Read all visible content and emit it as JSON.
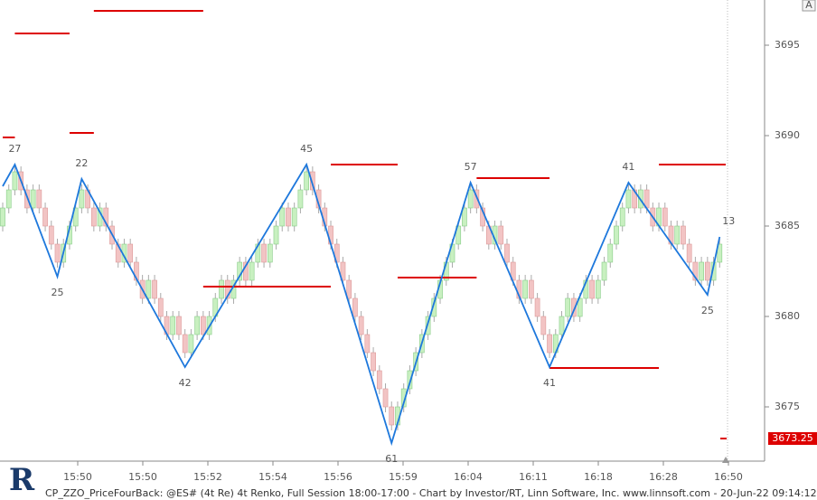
{
  "chart_data": {
    "type": "renko",
    "footer": "CP_ZZO_PriceFourBack: @ES# (4t Re) 4t Renko, Full Session 18:00-17:00 - Chart by Investor/RT, Linn Software, Inc. www.linnsoft.com - 20-Jun-22 09:14:12",
    "button": "A",
    "logo": "R",
    "ylim": [
      3672,
      3697.5
    ],
    "yticks": [
      3675,
      3680,
      3685,
      3690,
      3695
    ],
    "xlim": [
      0,
      119
    ],
    "time_labels": [
      "15:50",
      "15:50",
      "15:52",
      "15:54",
      "15:56",
      "15:59",
      "16:04",
      "16:11",
      "16:18",
      "16:28",
      "16:50"
    ],
    "bricks": {
      "up_color": "#c8f0c0",
      "down_color": "#f2c4c4",
      "values": [
        3686,
        3687,
        3688,
        3687,
        3686,
        3687,
        3686,
        3685,
        3684,
        3683,
        3684,
        3685,
        3686,
        3687,
        3686,
        3685,
        3686,
        3685,
        3684,
        3683,
        3684,
        3683,
        3682,
        3681,
        3682,
        3681,
        3680,
        3679,
        3680,
        3679,
        3678,
        3679,
        3680,
        3679,
        3680,
        3681,
        3682,
        3681,
        3682,
        3683,
        3682,
        3683,
        3684,
        3683,
        3684,
        3685,
        3686,
        3685,
        3686,
        3687,
        3688,
        3687,
        3686,
        3685,
        3684,
        3683,
        3682,
        3681,
        3680,
        3679,
        3678,
        3677,
        3676,
        3675,
        3674,
        3675,
        3676,
        3677,
        3678,
        3679,
        3680,
        3681,
        3682,
        3683,
        3684,
        3685,
        3686,
        3687,
        3686,
        3685,
        3684,
        3685,
        3684,
        3683,
        3682,
        3681,
        3682,
        3681,
        3680,
        3679,
        3678,
        3679,
        3680,
        3681,
        3680,
        3681,
        3682,
        3681,
        3682,
        3683,
        3684,
        3685,
        3686,
        3687,
        3686,
        3687,
        3686,
        3685,
        3686,
        3685,
        3684,
        3685,
        3684,
        3683,
        3682,
        3683,
        3682,
        3683,
        3684
      ]
    },
    "zigzag": {
      "color": "#1e78dc",
      "x": [
        0,
        2,
        9,
        13,
        30,
        50,
        64,
        77,
        90,
        103,
        116,
        118
      ],
      "values": [
        3687.2,
        3688.4,
        3682.2,
        3687.6,
        3677.2,
        3688.4,
        3673,
        3687.4,
        3677.2,
        3687.4,
        3681.2,
        3684.4
      ],
      "labels": [
        null,
        "27",
        "25",
        "22",
        "42",
        "45",
        "61",
        "57",
        "41",
        "41",
        "25",
        "13"
      ]
    },
    "levels": {
      "color": "#dd0000",
      "from": [
        0,
        2,
        15,
        11,
        33,
        54,
        65,
        78,
        90,
        108
      ],
      "to": [
        2,
        11,
        33,
        15,
        54,
        65,
        78,
        90,
        108,
        119
      ],
      "values": [
        3689.9,
        3695.65,
        3696.9,
        3690.15,
        3681.65,
        3688.4,
        3682.15,
        3687.65,
        3677.15,
        3688.4
      ]
    },
    "last_price": {
      "value": 3673.25,
      "label": "3673.25",
      "color": "#dd0000"
    }
  }
}
